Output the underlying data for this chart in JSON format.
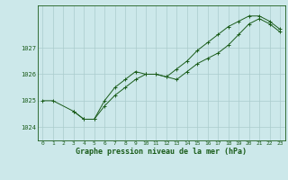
{
  "title": "Graphe pression niveau de la mer (hPa)",
  "xlabel_hours": [
    0,
    1,
    2,
    3,
    4,
    5,
    6,
    7,
    8,
    9,
    10,
    11,
    12,
    13,
    14,
    15,
    16,
    17,
    18,
    19,
    20,
    21,
    22,
    23
  ],
  "line1": [
    1025.0,
    1025.0,
    null,
    1024.6,
    1024.3,
    1024.3,
    1024.8,
    1025.2,
    1025.5,
    1025.8,
    1026.0,
    1026.0,
    1025.9,
    1025.8,
    1026.1,
    1026.4,
    1026.6,
    1026.8,
    1027.1,
    1027.5,
    1027.9,
    1028.1,
    1027.9,
    1027.6
  ],
  "line2": [
    null,
    null,
    null,
    1024.6,
    1024.3,
    1024.3,
    1025.0,
    1025.5,
    1025.8,
    1026.1,
    1026.0,
    1026.0,
    1025.9,
    1026.2,
    1026.5,
    1026.9,
    1027.2,
    1027.5,
    1027.8,
    1028.0,
    1028.2,
    1028.2,
    1028.0,
    1027.7
  ],
  "ylim": [
    1023.5,
    1028.6
  ],
  "yticks": [
    1024,
    1025,
    1026,
    1027
  ],
  "ytick_labels": [
    "1024",
    "1025",
    "1026",
    "1027"
  ],
  "bg_color": "#cce8ea",
  "grid_color": "#aacccc",
  "line_color": "#1a5c1a",
  "marker_color": "#1a5c1a",
  "fig_bg": "#cce8ea",
  "title_fontsize": 6.0,
  "tick_fontsize": 4.5,
  "ytick_fontsize": 5.0
}
